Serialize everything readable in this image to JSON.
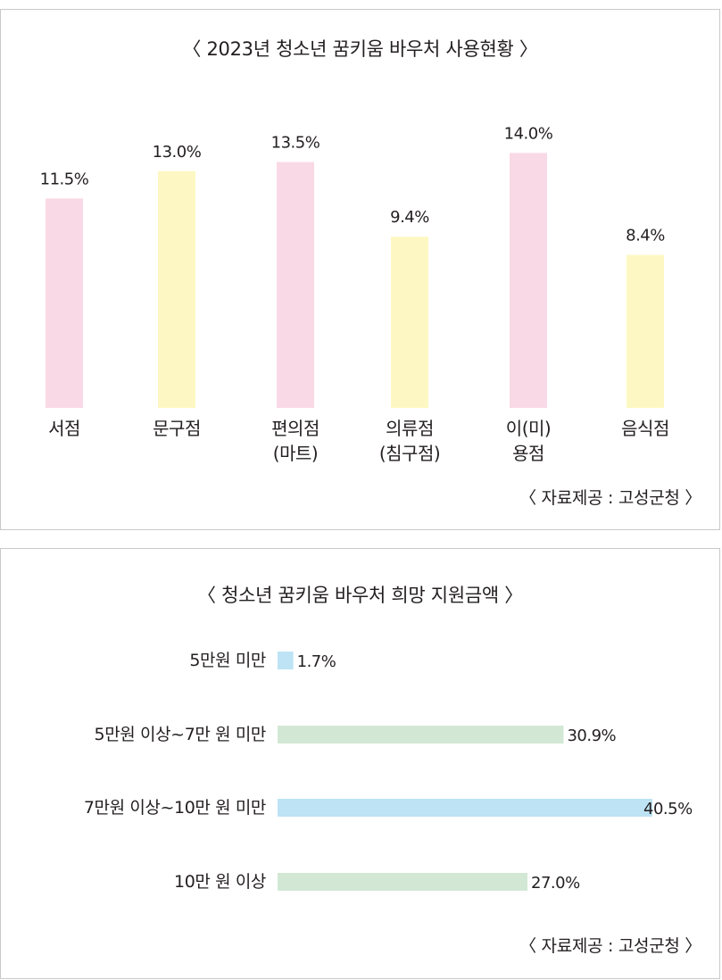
{
  "chart_data": [
    {
      "type": "bar",
      "orientation": "vertical",
      "title": "〈 2023년 청소년 꿈키움 바우처 사용현황 〉",
      "source": "〈 자료제공 : 고성군청 〉",
      "categories": [
        [
          "서점"
        ],
        [
          "문구점"
        ],
        [
          "편의점",
          "(마트)"
        ],
        [
          "의류점",
          "(침구점)"
        ],
        [
          "이(미)",
          "용점"
        ],
        [
          "음식점"
        ]
      ],
      "values": [
        11.5,
        13.0,
        13.5,
        9.4,
        14.0,
        8.4
      ],
      "value_labels": [
        "11.5%",
        "13.0%",
        "13.5%",
        "9.4%",
        "14.0%",
        "8.4%"
      ],
      "colors": [
        "#f9d9e6",
        "#fdf8c3",
        "#f9d9e6",
        "#fdf8c3",
        "#f9d9e6",
        "#fdf8c3"
      ],
      "ylim": [
        0,
        14.9
      ],
      "grid": false,
      "legend": "none"
    },
    {
      "type": "bar",
      "orientation": "horizontal",
      "title": "〈 청소년 꿈키움 바우처 희망 지원금액 〉",
      "source": "〈 자료제공 : 고성군청 〉",
      "categories": [
        "5만원 미만",
        "5만원 이상~7만 원 미만",
        "7만원 이상~10만 원 미만",
        "10만 원 이상"
      ],
      "values": [
        1.7,
        30.9,
        40.5,
        27.0
      ],
      "value_labels": [
        "1.7%",
        "30.9%",
        "40.5%",
        "27.0%"
      ],
      "colors": [
        "#bde3f5",
        "#d2e8d4",
        "#bde3f5",
        "#d2e8d4"
      ],
      "xlim": [
        0,
        40.5
      ],
      "grid": false,
      "legend": "none"
    }
  ]
}
